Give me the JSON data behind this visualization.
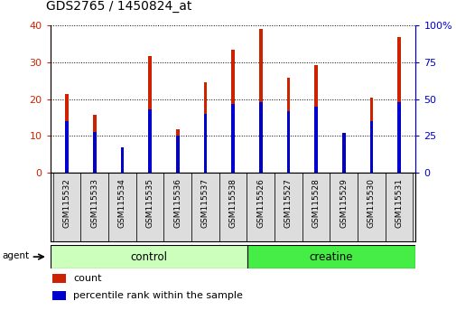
{
  "title": "GDS2765 / 1450824_at",
  "categories": [
    "GSM115532",
    "GSM115533",
    "GSM115534",
    "GSM115535",
    "GSM115536",
    "GSM115537",
    "GSM115538",
    "GSM115526",
    "GSM115527",
    "GSM115528",
    "GSM115529",
    "GSM115530",
    "GSM115531"
  ],
  "count_values": [
    21.5,
    15.8,
    5.2,
    31.8,
    11.8,
    24.5,
    33.5,
    39.2,
    25.8,
    29.2,
    10.5,
    20.5,
    37.0
  ],
  "percentile_values": [
    35,
    28,
    17,
    43,
    25,
    40,
    47,
    48,
    42,
    45,
    27,
    35,
    48
  ],
  "ylim_left": [
    0,
    40
  ],
  "ylim_right": [
    0,
    100
  ],
  "yticks_left": [
    0,
    10,
    20,
    30,
    40
  ],
  "yticks_right": [
    0,
    25,
    50,
    75,
    100
  ],
  "bar_color": "#cc2200",
  "percentile_color": "#0000cc",
  "control_color": "#ccffbb",
  "creatine_color": "#44ee44",
  "control_label": "control",
  "creatine_label": "creatine",
  "agent_label": "agent",
  "legend_count": "count",
  "legend_percentile": "percentile rank within the sample",
  "n_control": 7,
  "n_creatine": 6,
  "bar_width": 0.12,
  "perc_bar_width": 0.12
}
